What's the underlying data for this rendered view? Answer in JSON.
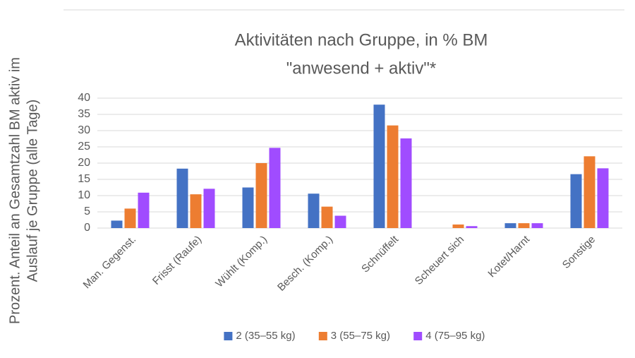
{
  "chart_data": {
    "type": "bar",
    "title": [
      "Aktivitäten nach Gruppe, in % BM",
      "\"anwesend + aktiv\"*"
    ],
    "y_label": [
      "Prozent. Anteil an Gesamtzahl BM aktiv im",
      "Auslauf  je Gruppe (alle Tage)"
    ],
    "categories": [
      "Man. Gegenst.",
      "Frisst (Raufe)",
      "Wühlt (Komp.)",
      "Besch. (Komp.)",
      "Schnüffelt",
      "Scheuert sich",
      "Kotet/Harnt",
      "Sonstige"
    ],
    "series": [
      {
        "name": "2 (35–55 kg)",
        "color": "#4472c4",
        "values": [
          2.3,
          18.3,
          12.5,
          10.6,
          38,
          0,
          1.5,
          16.6
        ]
      },
      {
        "name": "3 (55–75 kg)",
        "color": "#ed7d31",
        "values": [
          6,
          10.4,
          20,
          6.6,
          31.6,
          1.1,
          1.5,
          22.1
        ]
      },
      {
        "name": "4 (75–95 kg)",
        "color": "#a04cff",
        "values": [
          10.9,
          12.1,
          24.7,
          3.8,
          27.6,
          0.6,
          1.5,
          18.4
        ]
      }
    ],
    "ylim": [
      0,
      40
    ],
    "yticks": [
      0,
      5,
      10,
      15,
      20,
      25,
      30,
      35,
      40
    ],
    "grid": true,
    "legend": "bottom"
  }
}
